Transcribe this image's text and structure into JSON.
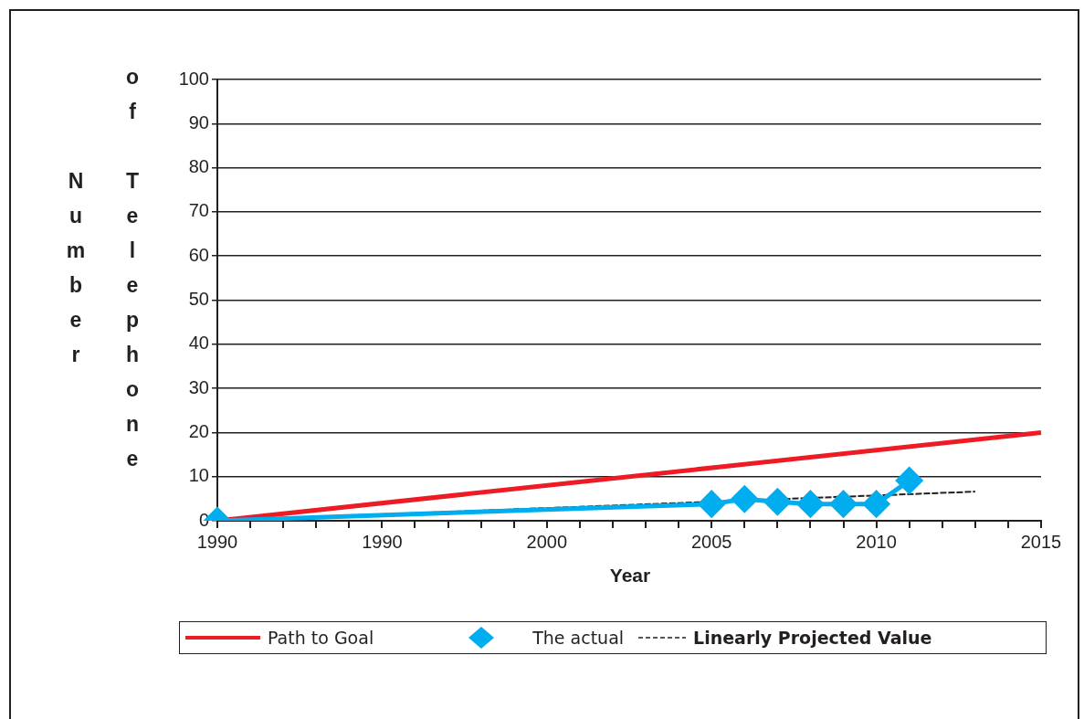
{
  "chart_data": {
    "type": "line",
    "xlabel": "Year",
    "ylabel": "Number of Telephone",
    "categories": [
      "1990",
      null,
      null,
      null,
      null,
      "1990",
      null,
      null,
      null,
      null,
      "2000",
      null,
      null,
      null,
      null,
      "2005",
      null,
      null,
      null,
      null,
      "2010",
      null,
      null,
      null,
      null,
      "2015"
    ],
    "series": [
      {
        "name": "Path to Goal",
        "color": "#ed1c24",
        "marker": "none",
        "line_style": "solid",
        "values": [
          0,
          null,
          null,
          null,
          null,
          null,
          null,
          null,
          null,
          null,
          null,
          null,
          null,
          null,
          null,
          null,
          null,
          null,
          null,
          null,
          null,
          null,
          null,
          null,
          null,
          20
        ]
      },
      {
        "name": "The actual",
        "color": "#00aeef",
        "marker": "diamond",
        "line_style": "solid",
        "values": [
          0,
          null,
          null,
          null,
          null,
          null,
          null,
          null,
          null,
          null,
          null,
          null,
          null,
          null,
          null,
          3.8,
          4.9,
          4.3,
          3.8,
          3.8,
          3.8,
          9.1,
          null,
          null,
          null,
          null
        ]
      },
      {
        "name": "Linearly Projected Value",
        "color": "#231f20",
        "marker": "none",
        "line_style": "dashed",
        "values": [
          0,
          null,
          null,
          null,
          null,
          null,
          null,
          null,
          null,
          null,
          null,
          null,
          null,
          null,
          null,
          null,
          null,
          null,
          null,
          null,
          null,
          null,
          null,
          6.6,
          null,
          null
        ]
      }
    ],
    "ylim": [
      0,
      100
    ],
    "yticks": [
      0,
      10,
      20,
      30,
      40,
      50,
      60,
      70,
      80,
      90,
      100
    ],
    "grid": "y",
    "legend": "bottom"
  }
}
